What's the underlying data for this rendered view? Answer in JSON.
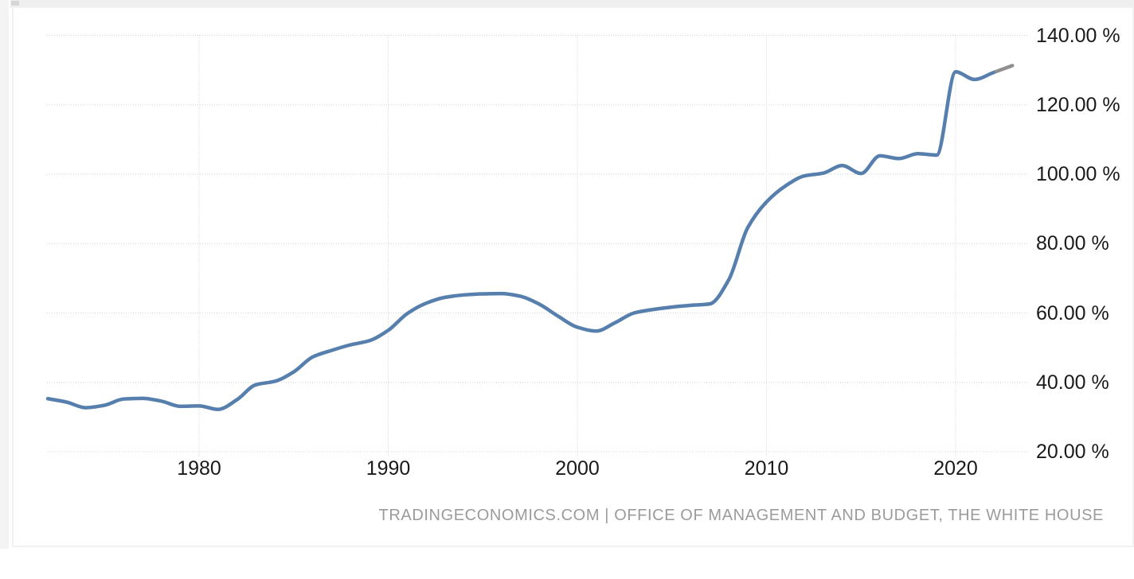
{
  "colors": {
    "gutter": "#f4f4f4",
    "scrollbar_track": "#efefef",
    "scrollbar_thumb": "#d6d6d6",
    "border": "#f1f1f1",
    "gridline": "#d0d0d0",
    "axis_text": "#1a1a1a",
    "attribution_text": "#9b9b9b",
    "line_actual": "#567fae",
    "line_forecast": "#909090"
  },
  "chart": {
    "attribution": "TRADINGECONOMICS.COM | OFFICE OF MANAGEMENT AND BUDGET, THE WHITE HOUSE"
  },
  "chart_data": {
    "type": "line",
    "grid": "dotted",
    "legend": "none",
    "xlim": [
      1971.9,
      2023.8
    ],
    "ylim": [
      20,
      140
    ],
    "x_ticks": [
      1980,
      1990,
      2000,
      2010,
      2020
    ],
    "x_tick_labels": [
      "1980",
      "1990",
      "2000",
      "2010",
      "2020"
    ],
    "y_ticks": [
      140,
      120,
      100,
      80,
      60,
      40,
      20
    ],
    "y_tick_labels": [
      "140.00 %",
      "120.00 %",
      "100.00 %",
      "80.00 %",
      "60.00 %",
      "40.00 %",
      "20.00 %"
    ],
    "series": [
      {
        "name": "debt-to-gdp-actual",
        "color": "#567fae",
        "x": [
          1972,
          1973,
          1974,
          1975,
          1976,
          1977,
          1978,
          1979,
          1980,
          1981,
          1982,
          1983,
          1984,
          1985,
          1986,
          1987,
          1988,
          1989,
          1990,
          1991,
          1992,
          1993,
          1994,
          1995,
          1996,
          1997,
          1998,
          1999,
          2000,
          2001,
          2002,
          2003,
          2004,
          2005,
          2006,
          2007,
          2008,
          2009,
          2010,
          2011,
          2012,
          2013,
          2014,
          2015,
          2016,
          2017,
          2018,
          2019,
          2020,
          2021,
          2022
        ],
        "values": [
          35.3,
          34.3,
          32.7,
          33.4,
          35.2,
          35.4,
          34.6,
          33.1,
          33.2,
          32.2,
          35.0,
          39.3,
          40.3,
          43.0,
          47.3,
          49.2,
          50.8,
          52.0,
          55.0,
          59.8,
          62.8,
          64.5,
          65.2,
          65.5,
          65.6,
          64.8,
          62.5,
          59.0,
          55.9,
          54.8,
          57.2,
          60.0,
          61.0,
          61.7,
          62.2,
          62.6,
          69.5,
          84.5,
          92.0,
          96.6,
          99.5,
          100.3,
          102.5,
          100.2,
          105.3,
          104.5,
          105.9,
          105.5,
          129.5,
          127.3,
          129.3
        ]
      },
      {
        "name": "debt-to-gdp-forecast",
        "color": "#909090",
        "x": [
          2022,
          2023
        ],
        "values": [
          129.3,
          131.3
        ]
      }
    ]
  }
}
